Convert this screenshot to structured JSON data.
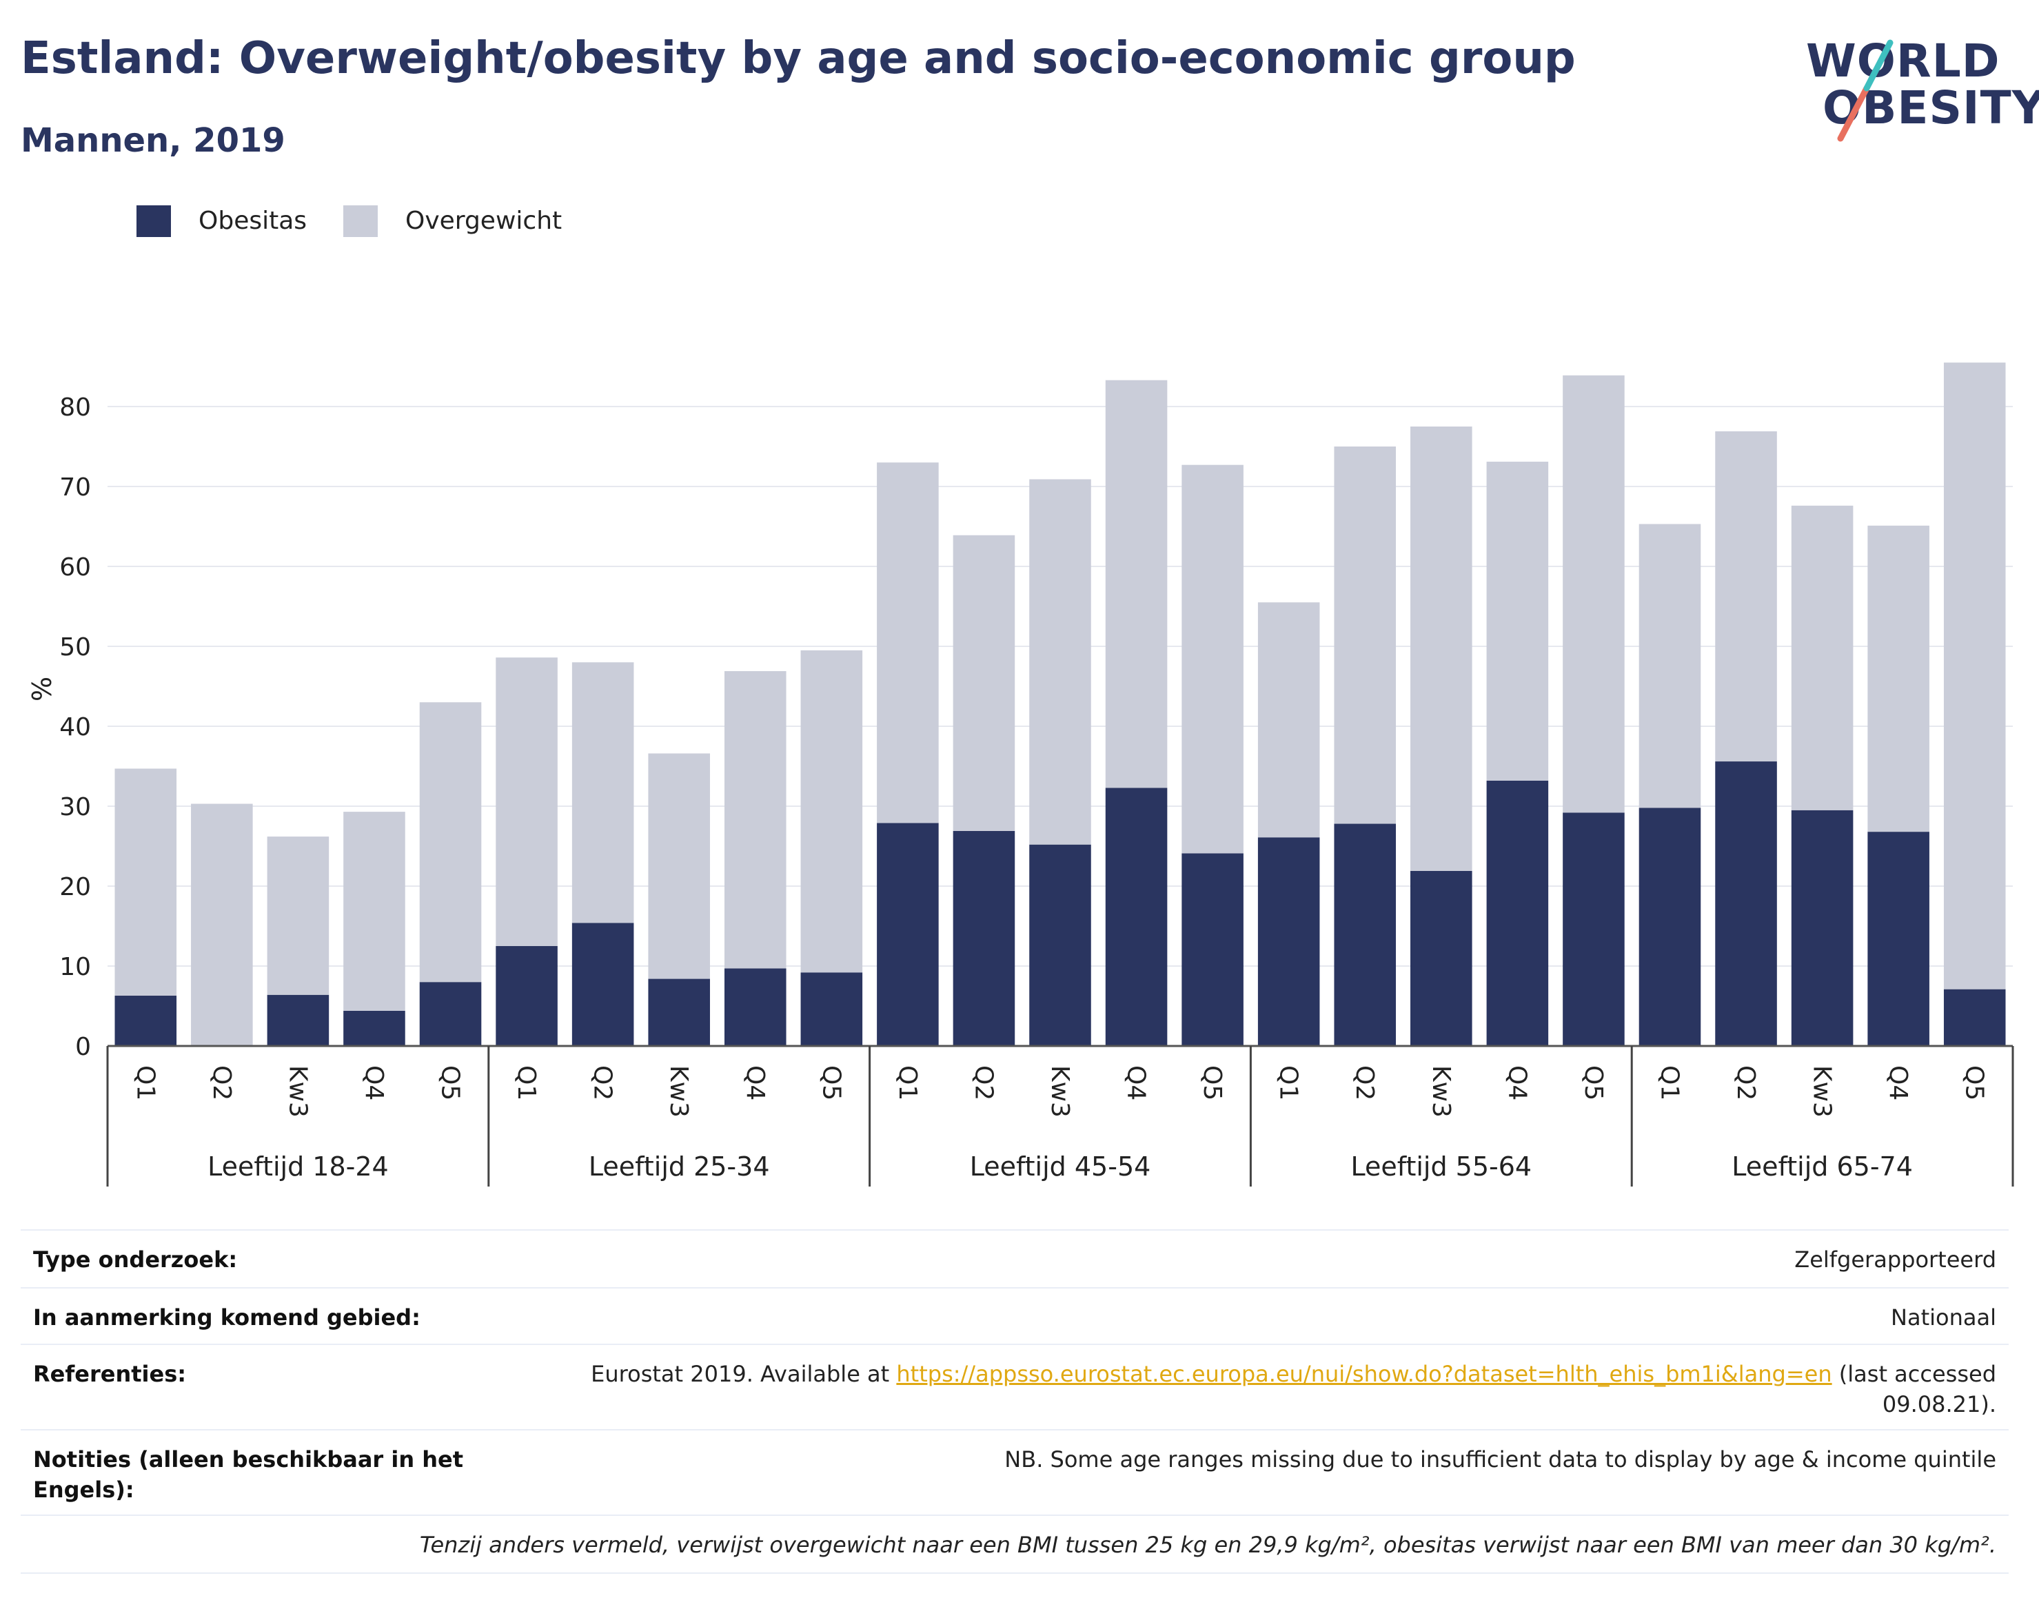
{
  "header": {
    "title": "Estland: Overweight/obesity by age and socio-economic group",
    "subtitle": "Mannen, 2019"
  },
  "logo": {
    "line1": "WORLD",
    "line2": "OBESITY"
  },
  "legend": [
    {
      "label": "Obesitas",
      "color": "#2a3560"
    },
    {
      "label": "Overgewicht",
      "color": "#cacdd9"
    }
  ],
  "chart_data": {
    "type": "bar",
    "stacked": true,
    "ylabel": "%",
    "ylim": [
      0,
      88
    ],
    "yticks": [
      0,
      10,
      20,
      30,
      40,
      50,
      60,
      70,
      80
    ],
    "grid": true,
    "legend_position": "top-left",
    "groups": [
      {
        "label": "Leeftijd 18-24",
        "categories": [
          "Q1",
          "Q2",
          "Kw3",
          "Q4",
          "Q5"
        ]
      },
      {
        "label": "Leeftijd 25-34",
        "categories": [
          "Q1",
          "Q2",
          "Kw3",
          "Q4",
          "Q5"
        ]
      },
      {
        "label": "Leeftijd 45-54",
        "categories": [
          "Q1",
          "Q2",
          "Kw3",
          "Q4",
          "Q5"
        ]
      },
      {
        "label": "Leeftijd 55-64",
        "categories": [
          "Q1",
          "Q2",
          "Kw3",
          "Q4",
          "Q5"
        ]
      },
      {
        "label": "Leeftijd 65-74",
        "categories": [
          "Q1",
          "Q2",
          "Kw3",
          "Q4",
          "Q5"
        ]
      }
    ],
    "series": [
      {
        "name": "Obesitas",
        "color": "#2a3560",
        "values": [
          6.3,
          0,
          6.4,
          4.4,
          8.0,
          12.5,
          15.4,
          8.4,
          9.7,
          9.2,
          27.9,
          26.9,
          25.2,
          32.3,
          24.1,
          26.1,
          27.8,
          21.9,
          33.2,
          29.2,
          29.8,
          35.6,
          29.5,
          26.8,
          7.1
        ]
      },
      {
        "name": "Overgewicht",
        "color": "#cacdd9",
        "values": [
          28.4,
          30.3,
          19.8,
          24.9,
          35.0,
          36.1,
          32.6,
          28.2,
          37.2,
          40.3,
          45.1,
          37.0,
          45.7,
          51.0,
          48.6,
          29.4,
          47.2,
          55.6,
          39.9,
          54.7,
          35.5,
          41.3,
          38.1,
          38.3,
          78.4
        ]
      }
    ]
  },
  "info": {
    "rows": [
      {
        "key": "Type onderzoek:",
        "value": "Zelfgerapporteerd"
      },
      {
        "key": "In aanmerking komend gebied:",
        "value": "Nationaal"
      },
      {
        "key": "Referenties:",
        "value_pre": "Eurostat 2019. Available at ",
        "link": "https://appsso.eurostat.ec.europa.eu/nui/show.do?dataset=hlth_ehis_bm1i&lang=en",
        "value_post": " (last accessed",
        "value_post2": "09.08.21)."
      },
      {
        "key_line1": "Notities (alleen beschikbaar in het",
        "key_line2": "Engels):",
        "value": "NB. Some age ranges missing due to insufficient data to display by age & income quintile"
      }
    ],
    "footnote": "Tenzij anders vermeld, verwijst overgewicht naar een BMI tussen 25 kg en 29,9 kg/m², obesitas verwijst naar een BMI van meer dan 30 kg/m²."
  }
}
